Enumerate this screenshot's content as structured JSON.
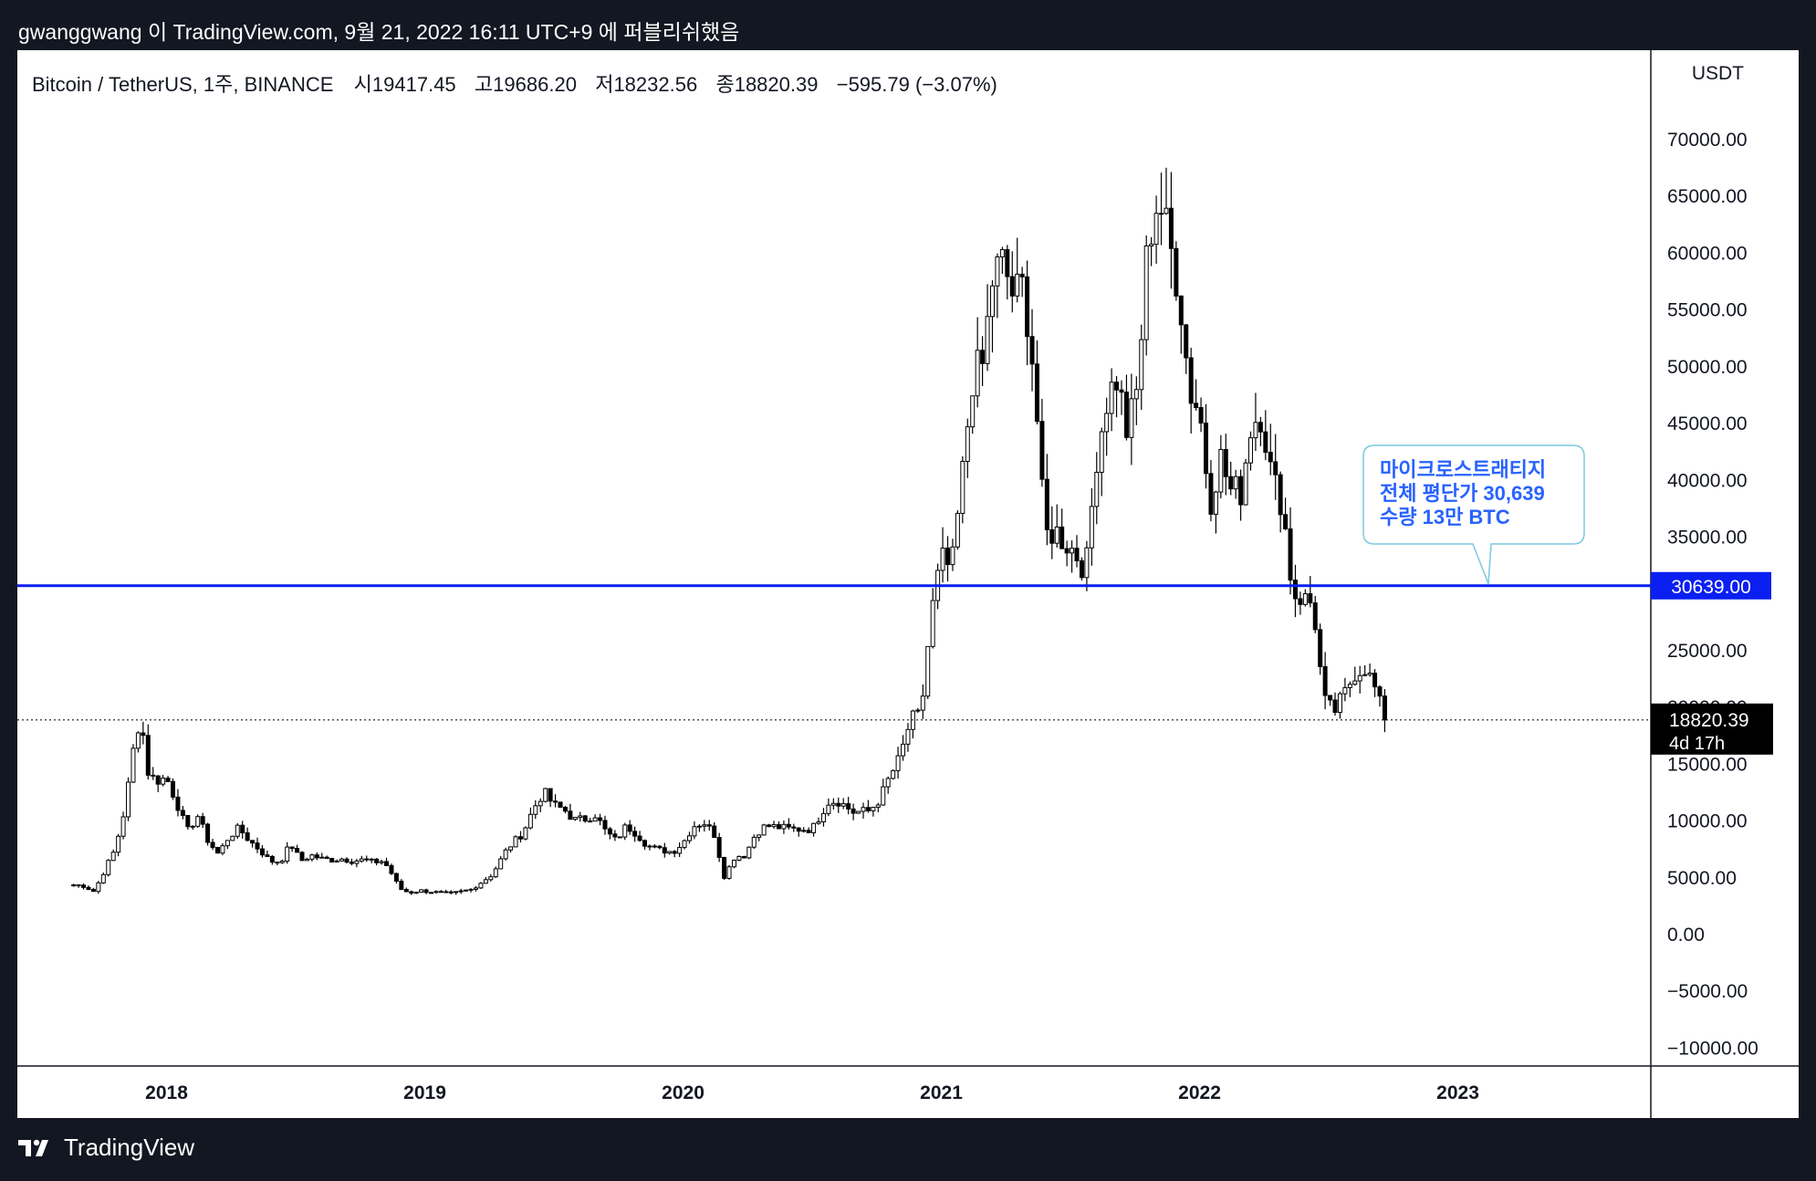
{
  "caption": "gwanggwang 이 TradingView.com, 9월 21, 2022 16:11 UTC+9 에 퍼블리쉬했음",
  "legend": {
    "symbol": "Bitcoin / TetherUS, 1주, BINANCE",
    "open_label": "시",
    "open": "19417.45",
    "high_label": "고",
    "high": "19686.20",
    "low_label": "저",
    "low": "18232.56",
    "close_label": "종",
    "close": "18820.39",
    "change": "−595.79 (−3.07%)"
  },
  "axis_unit": "USDT",
  "brand": "TradingView",
  "colors": {
    "background": "#131722",
    "chart_bg": "#ffffff",
    "candle": "#000000",
    "hline": "#0b1ff2",
    "callout_border": "#7cc8e0",
    "callout_text": "#2862ff",
    "price_tag_bg": "#000000"
  },
  "chart_data": {
    "type": "candlestick",
    "interval": "1W",
    "y_axis": {
      "ticks": [
        "70000.00",
        "65000.00",
        "60000.00",
        "55000.00",
        "50000.00",
        "45000.00",
        "40000.00",
        "35000.00",
        "25000.00",
        "20000.00",
        "15000.00",
        "10000.00",
        "5000.00",
        "0.00",
        "−5000.00",
        "−10000.00"
      ],
      "range": [
        -10000,
        72000
      ]
    },
    "x_axis": {
      "ticks": [
        "2018",
        "2019",
        "2020",
        "2021",
        "2022",
        "2023"
      ],
      "range": [
        2017.62,
        2023.7
      ]
    },
    "close_series": [
      [
        2017.64,
        4300
      ],
      [
        2017.68,
        4200
      ],
      [
        2017.72,
        3700
      ],
      [
        2017.76,
        5600
      ],
      [
        2017.8,
        7400
      ],
      [
        2017.84,
        11200
      ],
      [
        2017.88,
        17600
      ],
      [
        2017.9,
        19000
      ],
      [
        2017.93,
        14000
      ],
      [
        2017.96,
        13500
      ],
      [
        2018.0,
        13700
      ],
      [
        2018.04,
        11500
      ],
      [
        2018.08,
        9000
      ],
      [
        2018.12,
        10400
      ],
      [
        2018.16,
        8200
      ],
      [
        2018.2,
        7000
      ],
      [
        2018.24,
        8500
      ],
      [
        2018.28,
        9300
      ],
      [
        2018.32,
        8200
      ],
      [
        2018.36,
        7400
      ],
      [
        2018.4,
        6400
      ],
      [
        2018.44,
        6300
      ],
      [
        2018.48,
        7900
      ],
      [
        2018.52,
        6400
      ],
      [
        2018.56,
        6900
      ],
      [
        2018.6,
        6600
      ],
      [
        2018.64,
        6500
      ],
      [
        2018.68,
        6600
      ],
      [
        2018.72,
        6400
      ],
      [
        2018.76,
        6500
      ],
      [
        2018.8,
        6300
      ],
      [
        2018.84,
        6400
      ],
      [
        2018.88,
        5000
      ],
      [
        2018.9,
        4000
      ],
      [
        2018.94,
        3600
      ],
      [
        2018.98,
        3800
      ],
      [
        2019.02,
        3700
      ],
      [
        2019.1,
        3500
      ],
      [
        2019.18,
        3900
      ],
      [
        2019.26,
        5200
      ],
      [
        2019.32,
        7500
      ],
      [
        2019.38,
        8900
      ],
      [
        2019.42,
        11000
      ],
      [
        2019.46,
        12500
      ],
      [
        2019.5,
        11300
      ],
      [
        2019.54,
        10900
      ],
      [
        2019.58,
        10000
      ],
      [
        2019.62,
        10100
      ],
      [
        2019.66,
        10500
      ],
      [
        2019.7,
        9000
      ],
      [
        2019.74,
        8200
      ],
      [
        2019.78,
        9500
      ],
      [
        2019.82,
        8800
      ],
      [
        2019.86,
        7800
      ],
      [
        2019.9,
        7400
      ],
      [
        2019.96,
        7200
      ],
      [
        2020.0,
        8000
      ],
      [
        2020.04,
        9500
      ],
      [
        2020.08,
        9800
      ],
      [
        2020.12,
        8800
      ],
      [
        2020.16,
        5000
      ],
      [
        2020.2,
        6800
      ],
      [
        2020.24,
        6900
      ],
      [
        2020.28,
        8800
      ],
      [
        2020.32,
        9500
      ],
      [
        2020.36,
        9400
      ],
      [
        2020.42,
        9200
      ],
      [
        2020.5,
        9200
      ],
      [
        2020.56,
        11600
      ],
      [
        2020.6,
        11700
      ],
      [
        2020.66,
        10700
      ],
      [
        2020.72,
        10800
      ],
      [
        2020.76,
        11800
      ],
      [
        2020.8,
        13800
      ],
      [
        2020.84,
        15500
      ],
      [
        2020.88,
        18800
      ],
      [
        2020.92,
        19200
      ],
      [
        2020.96,
        28000
      ],
      [
        2021.0,
        33000
      ],
      [
        2021.04,
        32000
      ],
      [
        2021.08,
        40000
      ],
      [
        2021.12,
        49000
      ],
      [
        2021.16,
        50000
      ],
      [
        2021.2,
        58000
      ],
      [
        2021.24,
        59000
      ],
      [
        2021.28,
        56000
      ],
      [
        2021.32,
        57000
      ],
      [
        2021.36,
        49000
      ],
      [
        2021.4,
        35000
      ],
      [
        2021.44,
        35500
      ],
      [
        2021.48,
        34500
      ],
      [
        2021.52,
        33500
      ],
      [
        2021.56,
        32000
      ],
      [
        2021.6,
        42000
      ],
      [
        2021.64,
        47000
      ],
      [
        2021.68,
        49000
      ],
      [
        2021.72,
        44000
      ],
      [
        2021.76,
        48000
      ],
      [
        2021.8,
        61000
      ],
      [
        2021.84,
        65000
      ],
      [
        2021.88,
        61000
      ],
      [
        2021.92,
        57000
      ],
      [
        2021.96,
        48000
      ],
      [
        2022.0,
        46000
      ],
      [
        2022.04,
        38000
      ],
      [
        2022.08,
        42000
      ],
      [
        2022.12,
        39000
      ],
      [
        2022.16,
        39000
      ],
      [
        2022.2,
        45000
      ],
      [
        2022.24,
        46000
      ],
      [
        2022.28,
        40000
      ],
      [
        2022.32,
        38000
      ],
      [
        2022.36,
        30000
      ],
      [
        2022.4,
        29500
      ],
      [
        2022.44,
        29000
      ],
      [
        2022.48,
        20500
      ],
      [
        2022.52,
        19500
      ],
      [
        2022.56,
        21000
      ],
      [
        2022.6,
        23000
      ],
      [
        2022.64,
        23500
      ],
      [
        2022.68,
        21500
      ],
      [
        2022.7,
        20000
      ],
      [
        2022.72,
        18820
      ]
    ],
    "series": [
      {
        "name": "Bitcoin / TetherUS",
        "last": 18820.39
      }
    ],
    "horizontal_lines": [
      {
        "value": 30639.0,
        "label": "30639.00",
        "style": "solid"
      },
      {
        "value": 18820.39,
        "label": "18820.39",
        "style": "dotted"
      }
    ],
    "price_tag": {
      "value": "18820.39",
      "countdown": "4d 17h"
    },
    "callout": {
      "lines": [
        "마이크로스트래티지",
        "전체 평단가 30,639",
        "수량 13만 BTC"
      ],
      "anchor_value": 30639
    }
  }
}
